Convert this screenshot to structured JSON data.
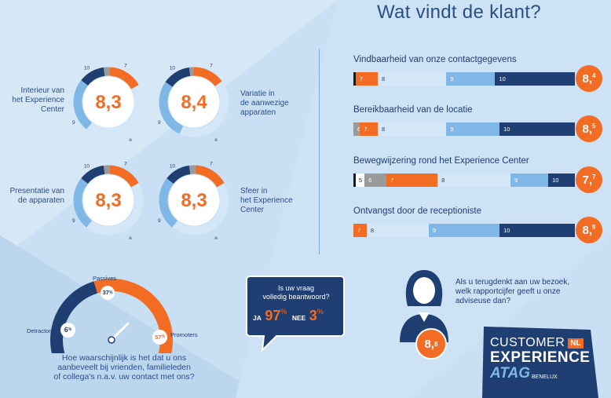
{
  "title": "Wat vindt de klant?",
  "colors": {
    "r6": "#9a9a9a",
    "r7": "#f26c23",
    "r8": "#d3e7f7",
    "r9": "#7fb7e6",
    "r10": "#1f3e72",
    "r5": "#ffffff",
    "low": "#1a1a1a",
    "orange": "#f26c23",
    "navy": "#1f3e72"
  },
  "donuts": [
    {
      "label_lines": [
        "Interieur van",
        "het Experience",
        "Center"
      ],
      "score": "8,3",
      "segments": [
        {
          "grade": "6",
          "pct": 3
        },
        {
          "grade": "7",
          "pct": 16
        },
        {
          "grade": "8",
          "pct": 44
        },
        {
          "grade": "9",
          "pct": 25
        },
        {
          "grade": "10",
          "pct": 12
        }
      ],
      "tick_labels": [
        "10",
        "7",
        "8",
        "9"
      ]
    },
    {
      "label_lines": [
        "Variatie in",
        "de aanwezige",
        "apparaten"
      ],
      "score": "8,4",
      "segments": [
        {
          "grade": "6",
          "pct": 2
        },
        {
          "grade": "7",
          "pct": 15
        },
        {
          "grade": "8",
          "pct": 42
        },
        {
          "grade": "9",
          "pct": 28
        },
        {
          "grade": "10",
          "pct": 13
        }
      ],
      "tick_labels": [
        "10",
        "7",
        "8",
        "9"
      ]
    },
    {
      "label_lines": [
        "Presentatie van",
        "de apparaten"
      ],
      "score": "8,3",
      "segments": [
        {
          "grade": "6",
          "pct": 3
        },
        {
          "grade": "7",
          "pct": 16
        },
        {
          "grade": "8",
          "pct": 44
        },
        {
          "grade": "9",
          "pct": 25
        },
        {
          "grade": "10",
          "pct": 12
        }
      ],
      "tick_labels": [
        "10",
        "7",
        "8",
        "9"
      ]
    },
    {
      "label_lines": [
        "Sfeer in",
        "het Experience",
        "Center"
      ],
      "score": "8,3",
      "segments": [
        {
          "grade": "6",
          "pct": 3
        },
        {
          "grade": "7",
          "pct": 16
        },
        {
          "grade": "8",
          "pct": 44
        },
        {
          "grade": "9",
          "pct": 25
        },
        {
          "grade": "10",
          "pct": 12
        }
      ],
      "tick_labels": [
        "10",
        "7",
        "8",
        "9"
      ]
    }
  ],
  "bars": [
    {
      "title": "Vindbaarheid van onze contactgegevens",
      "score_main": "8,",
      "score_sup": "4",
      "segments": [
        {
          "grade": "low",
          "label": "",
          "pct": 1
        },
        {
          "grade": "7",
          "label": "7",
          "pct": 10
        },
        {
          "grade": "8",
          "label": "8",
          "pct": 31
        },
        {
          "grade": "9",
          "label": "9",
          "pct": 22
        },
        {
          "grade": "10",
          "label": "10",
          "pct": 36
        }
      ]
    },
    {
      "title": "Bereikbaarheid van de locatie",
      "score_main": "8,",
      "score_sup": "5",
      "segments": [
        {
          "grade": "6",
          "label": "6",
          "pct": 3
        },
        {
          "grade": "7",
          "label": "7",
          "pct": 8
        },
        {
          "grade": "8",
          "label": "8",
          "pct": 31
        },
        {
          "grade": "9",
          "label": "9",
          "pct": 24
        },
        {
          "grade": "10",
          "label": "10",
          "pct": 34
        }
      ]
    },
    {
      "title": "Bewegwijzering rond het Experience Center",
      "score_main": "7,",
      "score_sup": "7",
      "segments": [
        {
          "grade": "low",
          "label": "",
          "pct": 1
        },
        {
          "grade": "5",
          "label": "5",
          "pct": 4
        },
        {
          "grade": "6",
          "label": "6",
          "pct": 10
        },
        {
          "grade": "7",
          "label": "7",
          "pct": 23
        },
        {
          "grade": "8",
          "label": "8",
          "pct": 33
        },
        {
          "grade": "9",
          "label": "9",
          "pct": 17
        },
        {
          "grade": "10",
          "label": "10",
          "pct": 12
        }
      ]
    },
    {
      "title": "Ontvangst door de receptioniste",
      "score_main": "8,",
      "score_sup": "9",
      "segments": [
        {
          "grade": "7",
          "label": "7",
          "pct": 6
        },
        {
          "grade": "8",
          "label": "8",
          "pct": 28
        },
        {
          "grade": "9",
          "label": "9",
          "pct": 32
        },
        {
          "grade": "10",
          "label": "10",
          "pct": 34
        }
      ]
    }
  ],
  "chart_data": [
    {
      "type": "pie",
      "title": "Interieur van het Experience Center",
      "center_value": "8,3",
      "categories": [
        "6",
        "7",
        "8",
        "9",
        "10"
      ],
      "values": [
        3,
        16,
        44,
        25,
        12
      ]
    },
    {
      "type": "pie",
      "title": "Variatie in de aanwezige apparaten",
      "center_value": "8,4",
      "categories": [
        "6",
        "7",
        "8",
        "9",
        "10"
      ],
      "values": [
        2,
        15,
        42,
        28,
        13
      ]
    },
    {
      "type": "pie",
      "title": "Presentatie van de apparaten",
      "center_value": "8,3",
      "categories": [
        "6",
        "7",
        "8",
        "9",
        "10"
      ],
      "values": [
        3,
        16,
        44,
        25,
        12
      ]
    },
    {
      "type": "pie",
      "title": "Sfeer in het Experience Center",
      "center_value": "8,3",
      "categories": [
        "6",
        "7",
        "8",
        "9",
        "10"
      ],
      "values": [
        3,
        16,
        44,
        25,
        12
      ]
    },
    {
      "type": "bar",
      "title": "Vindbaarheid van onze contactgegevens",
      "categories": [
        "7",
        "8",
        "9",
        "10"
      ],
      "values": [
        10,
        31,
        22,
        36
      ],
      "score": "8,4"
    },
    {
      "type": "bar",
      "title": "Bereikbaarheid van de locatie",
      "categories": [
        "6",
        "7",
        "8",
        "9",
        "10"
      ],
      "values": [
        3,
        8,
        31,
        24,
        34
      ],
      "score": "8,5"
    },
    {
      "type": "bar",
      "title": "Bewegwijzering rond het Experience Center",
      "categories": [
        "5",
        "6",
        "7",
        "8",
        "9",
        "10"
      ],
      "values": [
        4,
        10,
        23,
        33,
        17,
        12
      ],
      "score": "7,7"
    },
    {
      "type": "bar",
      "title": "Ontvangst door de receptioniste",
      "categories": [
        "7",
        "8",
        "9",
        "10"
      ],
      "values": [
        6,
        28,
        32,
        34
      ],
      "score": "8,9"
    },
    {
      "type": "pie",
      "title": "",
      "categories": [
        "Detractors",
        "Passives",
        "Promoters"
      ],
      "values": [
        6,
        37,
        57
      ]
    }
  ],
  "nps": {
    "passives_label": "Passives",
    "passives_value": "37",
    "passives_unit": "%",
    "detractors_label": "Detractors",
    "detractors_value": "6",
    "detractors_unit": "%",
    "promoters_label": "Promoters",
    "promoters_value": "57",
    "promoters_unit": "%",
    "question_lines": [
      "Hoe waarschijnlijk is het dat u ons",
      "aanbeveelt bij vrienden, familieleden",
      "of collega's n.a.v. uw contact met ons?"
    ],
    "detractors_pct": 6,
    "passives_pct": 37,
    "promoters_pct": 57
  },
  "bubble": {
    "question_lines": [
      "Is uw vraag",
      "volledig beantwoord?"
    ],
    "yes_label": "JA",
    "yes_value": "97",
    "yes_unit": "%",
    "no_label": "NEE",
    "no_value": "3",
    "no_unit": "%"
  },
  "advisor": {
    "question_lines": [
      "Als u terugdenkt aan uw bezoek,",
      "welk rapportcijfer geeft u onze",
      "adviseuse dan?"
    ],
    "score_main": "8,",
    "score_sup": "8"
  },
  "logo": {
    "line1": "CUSTOMER",
    "badge": "NL",
    "line2": "EXPERIENCE",
    "brand": "ATAG",
    "sub": "BENELUX"
  }
}
